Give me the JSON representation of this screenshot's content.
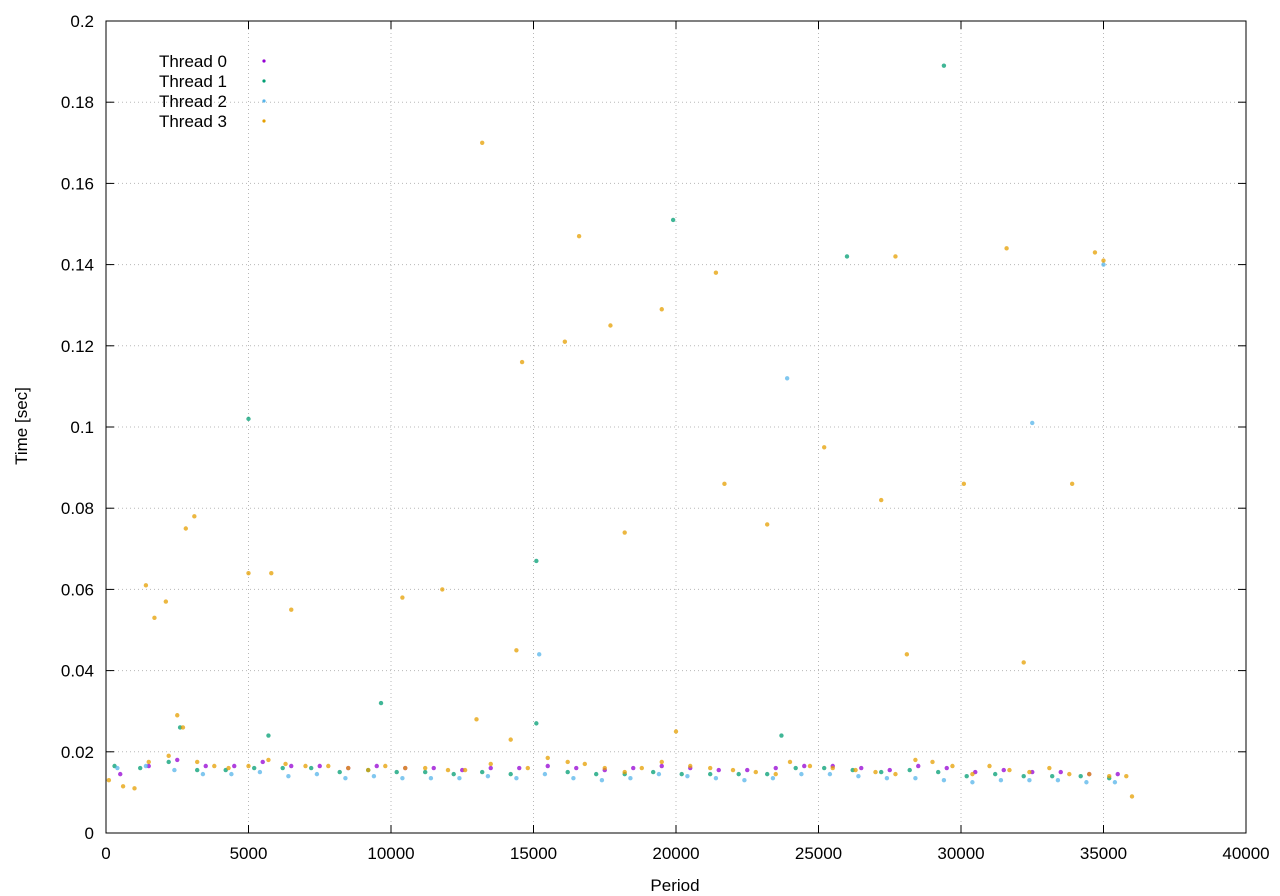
{
  "chart_data": {
    "type": "scatter",
    "title": "",
    "xlabel": "Period",
    "ylabel": "Time [sec]",
    "xlim": [
      0,
      40000
    ],
    "ylim": [
      0,
      0.2
    ],
    "x_ticks": [
      0,
      5000,
      10000,
      15000,
      20000,
      25000,
      30000,
      35000,
      40000
    ],
    "y_ticks": [
      0,
      0.02,
      0.04,
      0.06,
      0.08,
      0.1,
      0.12,
      0.14,
      0.16,
      0.18,
      0.2
    ],
    "x_tick_labels": [
      "0",
      "5000",
      "10000",
      "15000",
      "20000",
      "25000",
      "30000",
      "35000",
      "40000"
    ],
    "y_tick_labels": [
      "0",
      "0.02",
      "0.04",
      "0.06",
      "0.08",
      "0.1",
      "0.12",
      "0.14",
      "0.16",
      "0.18",
      "0.2"
    ],
    "grid": true,
    "legend_position": "top-left",
    "series": [
      {
        "name": "Thread 0",
        "color": "#9400d3",
        "points": [
          [
            500,
            0.0145
          ],
          [
            1500,
            0.0165
          ],
          [
            2500,
            0.018
          ],
          [
            3500,
            0.0165
          ],
          [
            4500,
            0.0165
          ],
          [
            5500,
            0.0175
          ],
          [
            6500,
            0.0165
          ],
          [
            7500,
            0.0165
          ],
          [
            8500,
            0.016
          ],
          [
            9500,
            0.0165
          ],
          [
            10500,
            0.016
          ],
          [
            11500,
            0.016
          ],
          [
            12500,
            0.0155
          ],
          [
            13500,
            0.016
          ],
          [
            14500,
            0.016
          ],
          [
            15500,
            0.0165
          ],
          [
            16500,
            0.016
          ],
          [
            17500,
            0.0155
          ],
          [
            18500,
            0.016
          ],
          [
            19500,
            0.0165
          ],
          [
            20500,
            0.016
          ],
          [
            21500,
            0.0155
          ],
          [
            22500,
            0.0155
          ],
          [
            23500,
            0.016
          ],
          [
            24500,
            0.0165
          ],
          [
            25500,
            0.0165
          ],
          [
            26500,
            0.016
          ],
          [
            27500,
            0.0155
          ],
          [
            28500,
            0.0165
          ],
          [
            29500,
            0.016
          ],
          [
            30500,
            0.015
          ],
          [
            31500,
            0.0155
          ],
          [
            32500,
            0.015
          ],
          [
            33500,
            0.015
          ],
          [
            34500,
            0.0145
          ],
          [
            35500,
            0.0145
          ]
        ]
      },
      {
        "name": "Thread 1",
        "color": "#009e73",
        "points": [
          [
            300,
            0.0165
          ],
          [
            1200,
            0.016
          ],
          [
            2200,
            0.0175
          ],
          [
            2600,
            0.026
          ],
          [
            3200,
            0.0155
          ],
          [
            4200,
            0.0155
          ],
          [
            5200,
            0.016
          ],
          [
            5700,
            0.024
          ],
          [
            6200,
            0.016
          ],
          [
            7200,
            0.016
          ],
          [
            8200,
            0.015
          ],
          [
            9200,
            0.0155
          ],
          [
            9650,
            0.032
          ],
          [
            10200,
            0.015
          ],
          [
            11200,
            0.015
          ],
          [
            12200,
            0.0145
          ],
          [
            13200,
            0.015
          ],
          [
            14200,
            0.0145
          ],
          [
            15100,
            0.027
          ],
          [
            16200,
            0.015
          ],
          [
            17200,
            0.0145
          ],
          [
            18200,
            0.0145
          ],
          [
            19200,
            0.015
          ],
          [
            20200,
            0.0145
          ],
          [
            21200,
            0.0145
          ],
          [
            22200,
            0.0145
          ],
          [
            23200,
            0.0145
          ],
          [
            23700,
            0.024
          ],
          [
            24200,
            0.016
          ],
          [
            25200,
            0.016
          ],
          [
            26200,
            0.0155
          ],
          [
            27200,
            0.015
          ],
          [
            28200,
            0.0155
          ],
          [
            29200,
            0.015
          ],
          [
            30200,
            0.014
          ],
          [
            31200,
            0.0145
          ],
          [
            32200,
            0.014
          ],
          [
            33200,
            0.014
          ],
          [
            34200,
            0.014
          ],
          [
            35200,
            0.0135
          ],
          [
            5000,
            0.102
          ],
          [
            15100,
            0.067
          ],
          [
            19900,
            0.151
          ],
          [
            26000,
            0.142
          ],
          [
            29400,
            0.189
          ]
        ]
      },
      {
        "name": "Thread 2",
        "color": "#56b4e9",
        "points": [
          [
            400,
            0.016
          ],
          [
            1400,
            0.0165
          ],
          [
            2400,
            0.0155
          ],
          [
            3400,
            0.0145
          ],
          [
            4400,
            0.0145
          ],
          [
            5400,
            0.015
          ],
          [
            6400,
            0.014
          ],
          [
            7400,
            0.0145
          ],
          [
            8400,
            0.0135
          ],
          [
            9400,
            0.014
          ],
          [
            10400,
            0.0135
          ],
          [
            11400,
            0.0135
          ],
          [
            12400,
            0.0135
          ],
          [
            13400,
            0.014
          ],
          [
            14400,
            0.0135
          ],
          [
            15200,
            0.044
          ],
          [
            15400,
            0.0145
          ],
          [
            16400,
            0.0135
          ],
          [
            17400,
            0.013
          ],
          [
            18400,
            0.0135
          ],
          [
            19400,
            0.0145
          ],
          [
            20400,
            0.014
          ],
          [
            21400,
            0.0135
          ],
          [
            22400,
            0.013
          ],
          [
            23400,
            0.0135
          ],
          [
            24400,
            0.0145
          ],
          [
            25400,
            0.0145
          ],
          [
            26400,
            0.014
          ],
          [
            27400,
            0.0135
          ],
          [
            28400,
            0.0135
          ],
          [
            29400,
            0.013
          ],
          [
            30400,
            0.0125
          ],
          [
            31400,
            0.013
          ],
          [
            32400,
            0.013
          ],
          [
            33400,
            0.013
          ],
          [
            34400,
            0.0125
          ],
          [
            35400,
            0.0125
          ],
          [
            23900,
            0.112
          ],
          [
            32500,
            0.101
          ],
          [
            35000,
            0.14
          ]
        ]
      },
      {
        "name": "Thread 3",
        "color": "#e69f00",
        "points": [
          [
            100,
            0.013
          ],
          [
            600,
            0.0115
          ],
          [
            1000,
            0.011
          ],
          [
            1500,
            0.0175
          ],
          [
            2200,
            0.019
          ],
          [
            2500,
            0.029
          ],
          [
            2700,
            0.026
          ],
          [
            3200,
            0.0175
          ],
          [
            3800,
            0.0165
          ],
          [
            4300,
            0.016
          ],
          [
            5000,
            0.0165
          ],
          [
            5700,
            0.018
          ],
          [
            6300,
            0.017
          ],
          [
            7000,
            0.0165
          ],
          [
            7800,
            0.0165
          ],
          [
            8500,
            0.016
          ],
          [
            9200,
            0.0155
          ],
          [
            9800,
            0.0165
          ],
          [
            10500,
            0.016
          ],
          [
            11200,
            0.016
          ],
          [
            12000,
            0.0155
          ],
          [
            12600,
            0.0155
          ],
          [
            13000,
            0.028
          ],
          [
            13500,
            0.017
          ],
          [
            14200,
            0.023
          ],
          [
            14800,
            0.016
          ],
          [
            15500,
            0.0185
          ],
          [
            16200,
            0.0175
          ],
          [
            16800,
            0.017
          ],
          [
            17500,
            0.016
          ],
          [
            18200,
            0.015
          ],
          [
            18800,
            0.016
          ],
          [
            19500,
            0.0175
          ],
          [
            20000,
            0.025
          ],
          [
            20500,
            0.0165
          ],
          [
            21200,
            0.016
          ],
          [
            22000,
            0.0155
          ],
          [
            22800,
            0.015
          ],
          [
            23500,
            0.0145
          ],
          [
            24000,
            0.0175
          ],
          [
            24700,
            0.0165
          ],
          [
            25500,
            0.016
          ],
          [
            26300,
            0.0155
          ],
          [
            27000,
            0.015
          ],
          [
            27700,
            0.0145
          ],
          [
            28400,
            0.018
          ],
          [
            29000,
            0.0175
          ],
          [
            29700,
            0.0165
          ],
          [
            30400,
            0.0145
          ],
          [
            31000,
            0.0165
          ],
          [
            31700,
            0.0155
          ],
          [
            32400,
            0.015
          ],
          [
            33100,
            0.016
          ],
          [
            33800,
            0.0145
          ],
          [
            34500,
            0.0145
          ],
          [
            35200,
            0.014
          ],
          [
            35800,
            0.014
          ],
          [
            1400,
            0.061
          ],
          [
            1700,
            0.053
          ],
          [
            2100,
            0.057
          ],
          [
            2800,
            0.075
          ],
          [
            3100,
            0.078
          ],
          [
            5000,
            0.064
          ],
          [
            5800,
            0.064
          ],
          [
            6500,
            0.055
          ],
          [
            10400,
            0.058
          ],
          [
            11800,
            0.06
          ],
          [
            13200,
            0.17
          ],
          [
            14400,
            0.045
          ],
          [
            14600,
            0.116
          ],
          [
            16100,
            0.121
          ],
          [
            16600,
            0.147
          ],
          [
            17700,
            0.125
          ],
          [
            18200,
            0.074
          ],
          [
            19500,
            0.129
          ],
          [
            21400,
            0.138
          ],
          [
            21700,
            0.086
          ],
          [
            23200,
            0.076
          ],
          [
            25200,
            0.095
          ],
          [
            27200,
            0.082
          ],
          [
            27700,
            0.142
          ],
          [
            28100,
            0.044
          ],
          [
            30100,
            0.086
          ],
          [
            31600,
            0.144
          ],
          [
            32200,
            0.042
          ],
          [
            33900,
            0.086
          ],
          [
            34700,
            0.143
          ],
          [
            35000,
            0.141
          ],
          [
            36000,
            0.009
          ]
        ]
      }
    ]
  }
}
